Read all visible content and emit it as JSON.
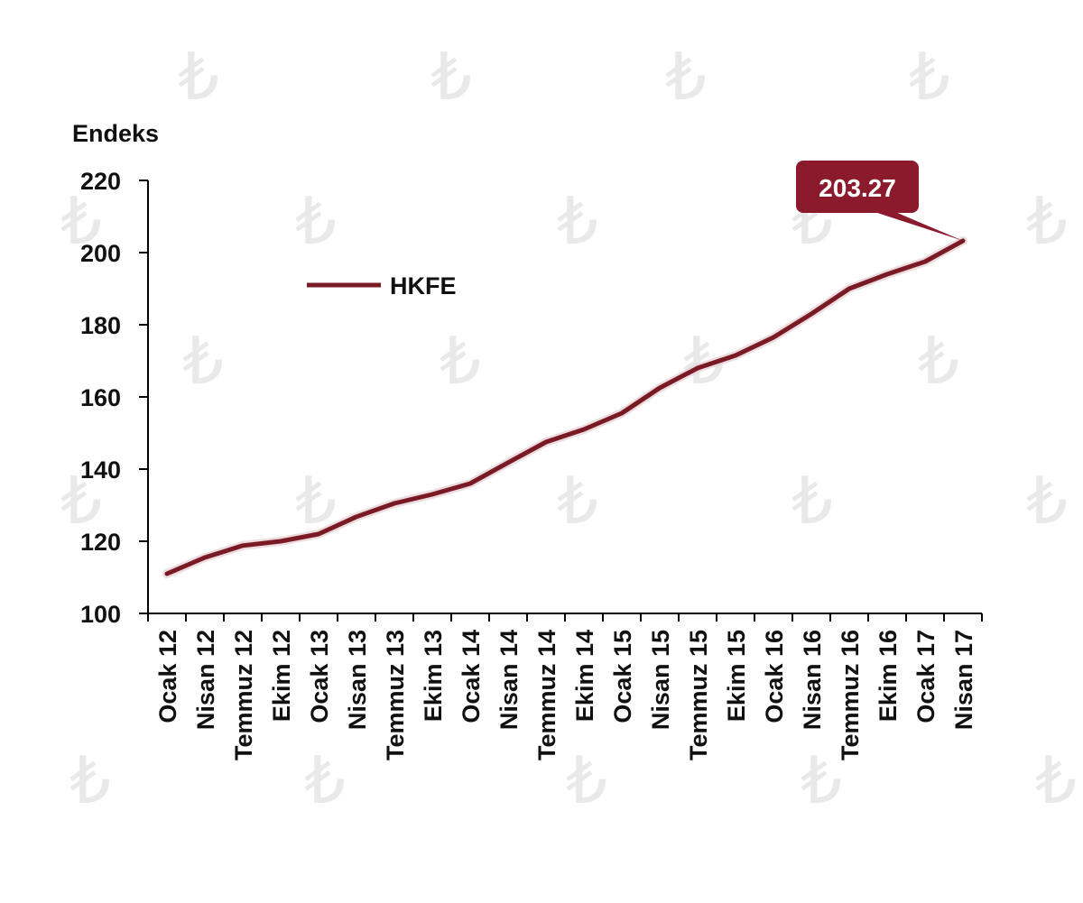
{
  "chart_data": {
    "type": "line",
    "ylabel": "Endeks",
    "ylim": [
      100,
      220
    ],
    "yticks": [
      100,
      120,
      140,
      160,
      180,
      200,
      220
    ],
    "grid": false,
    "legend_position": "upper-left",
    "categories": [
      "Ocak 12",
      "Nisan 12",
      "Temmuz 12",
      "Ekim 12",
      "Ocak 13",
      "Nisan 13",
      "Temmuz 13",
      "Ekim 13",
      "Ocak 14",
      "Nisan 14",
      "Temmuz 14",
      "Ekim 14",
      "Ocak 15",
      "Nisan 15",
      "Temmuz 15",
      "Ekim 15",
      "Ocak 16",
      "Nisan 16",
      "Temmuz 16",
      "Ekim 16",
      "Ocak 17",
      "Nisan 17"
    ],
    "series": [
      {
        "name": "HKFE",
        "color": "#7a1a24",
        "values": [
          111,
          115.5,
          118.8,
          120,
          122,
          126.8,
          130.5,
          133,
          136,
          141.8,
          147.5,
          151,
          155.5,
          162.5,
          168,
          171.5,
          176.5,
          183,
          190,
          194,
          197.5,
          203.27
        ]
      }
    ],
    "annotation": {
      "label": "203.27",
      "color": "#8b1a2c"
    }
  },
  "watermark": {
    "glyph": "₺",
    "color": "#e9e9e9"
  }
}
